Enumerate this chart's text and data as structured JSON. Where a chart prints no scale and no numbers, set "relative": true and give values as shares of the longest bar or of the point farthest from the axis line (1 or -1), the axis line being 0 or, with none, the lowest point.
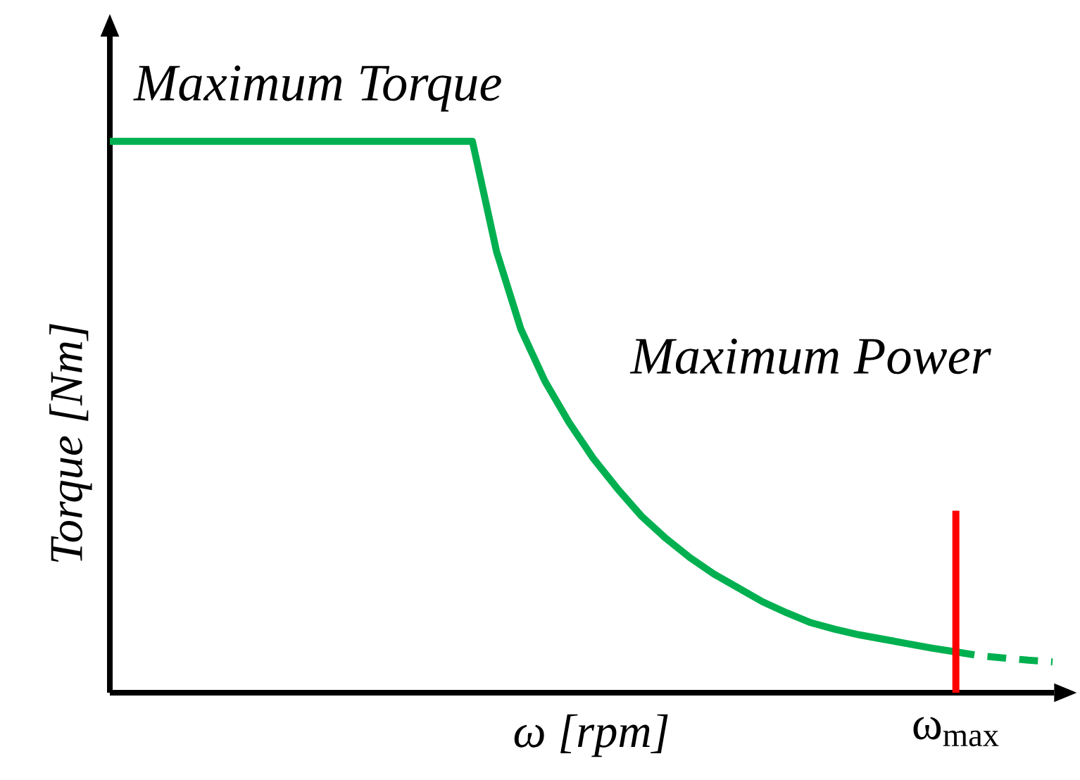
{
  "chart_data": {
    "type": "line",
    "relative": true,
    "xlabel": "ω [rpm]",
    "ylabel": "Torque [Nm]",
    "categories": [
      null,
      null,
      null,
      null,
      null,
      null,
      null,
      null,
      null,
      null,
      null,
      null,
      null,
      null,
      null,
      null,
      null,
      null,
      null,
      null,
      null,
      null,
      null,
      null,
      null,
      null,
      null,
      null,
      null,
      null,
      null,
      null,
      null,
      null,
      null,
      null,
      null,
      null,
      null,
      null
    ],
    "annotations": [
      "Maximum Torque",
      "Maximum Power",
      "ω$_{max}$"
    ],
    "series": [
      {
        "color": "#00b050",
        "line_style": "solid",
        "values": [
          1,
          1,
          1,
          1,
          1,
          1,
          1,
          1,
          1,
          1,
          1,
          1,
          1,
          1,
          1,
          1,
          0.8,
          0.66,
          0.565,
          0.49,
          0.425,
          0.37,
          0.32,
          0.28,
          0.245,
          0.215,
          0.19,
          0.165,
          0.145,
          0.127,
          0.115,
          0.105,
          0.097,
          0.089,
          0.081,
          0.074,
          null,
          null,
          null,
          null
        ]
      },
      {
        "color": "#00b050",
        "line_style": "dashed",
        "values": [
          null,
          null,
          null,
          null,
          null,
          null,
          null,
          null,
          null,
          null,
          null,
          null,
          null,
          null,
          null,
          null,
          null,
          null,
          null,
          null,
          null,
          null,
          null,
          null,
          null,
          null,
          null,
          null,
          null,
          null,
          null,
          null,
          null,
          null,
          null,
          0.074,
          0.067,
          0.063,
          0.059,
          0.056
        ]
      }
    ]
  }
}
